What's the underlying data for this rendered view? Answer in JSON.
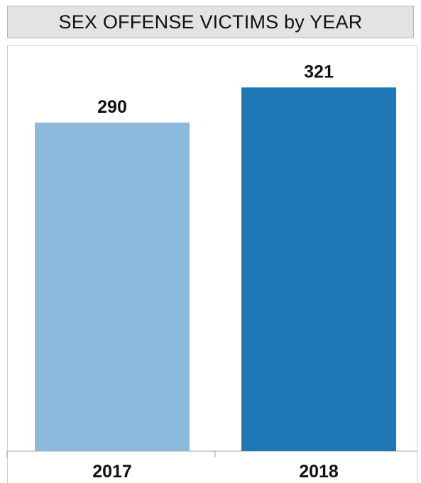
{
  "chart_data": {
    "type": "bar",
    "title": "SEX OFFENSE VICTIMS by YEAR",
    "categories": [
      "2017",
      "2018"
    ],
    "values": [
      290,
      321
    ],
    "data_labels": [
      "290",
      "321"
    ],
    "colors": [
      "#8db9dc",
      "#1f78b6"
    ],
    "ylim": [
      0,
      360
    ],
    "grid": false,
    "legend": "none",
    "xlabel": "",
    "ylabel": ""
  }
}
